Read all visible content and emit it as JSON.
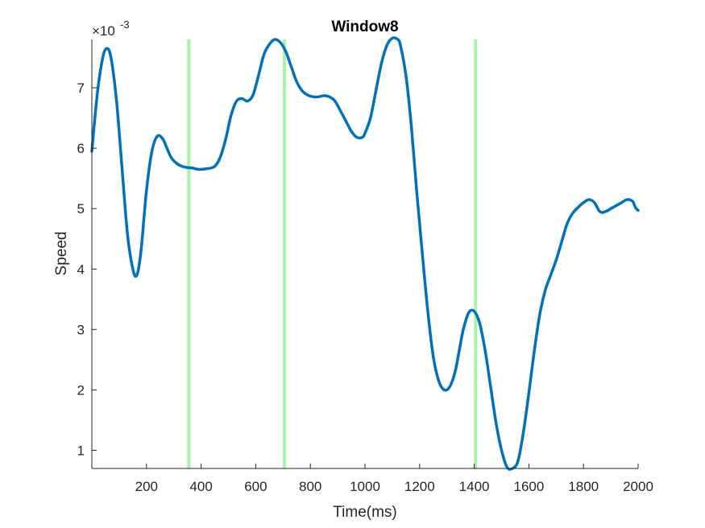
{
  "chart_data": {
    "type": "line",
    "title": "Window8",
    "xlabel": "Time(ms)",
    "ylabel": "Speed",
    "exponent_label": "×10",
    "exponent_power": "-3",
    "xlim": [
      0,
      2000
    ],
    "ylim": [
      0.7,
      7.8
    ],
    "xticks": [
      200,
      400,
      600,
      800,
      1000,
      1200,
      1400,
      1600,
      1800,
      2000
    ],
    "yticks": [
      1,
      2,
      3,
      4,
      5,
      6,
      7
    ],
    "grid": false,
    "series": [
      {
        "color": "#0072BD",
        "x": [
          0,
          20,
          40,
          55,
          70,
          90,
          110,
          130,
          150,
          165,
          180,
          200,
          220,
          240,
          260,
          275,
          290,
          310,
          330,
          350,
          370,
          390,
          420,
          450,
          470,
          490,
          510,
          530,
          550,
          570,
          590,
          610,
          630,
          650,
          670,
          690,
          710,
          730,
          750,
          770,
          790,
          810,
          830,
          850,
          870,
          890,
          910,
          930,
          950,
          970,
          990,
          1000,
          1020,
          1040,
          1060,
          1080,
          1100,
          1120,
          1130,
          1150,
          1170,
          1190,
          1210,
          1230,
          1250,
          1270,
          1290,
          1310,
          1330,
          1345,
          1360,
          1380,
          1400,
          1420,
          1440,
          1460,
          1480,
          1500,
          1520,
          1540,
          1560,
          1580,
          1600,
          1620,
          1640,
          1660,
          1680,
          1700,
          1720,
          1740,
          1760,
          1780,
          1800,
          1820,
          1840,
          1860,
          1880,
          1900,
          1920,
          1940,
          1960,
          1980,
          1990,
          2000
        ],
        "y": [
          5.95,
          6.9,
          7.5,
          7.65,
          7.5,
          6.8,
          5.7,
          4.6,
          4.0,
          3.9,
          4.3,
          5.3,
          5.95,
          6.2,
          6.15,
          6.0,
          5.85,
          5.75,
          5.7,
          5.68,
          5.67,
          5.65,
          5.66,
          5.7,
          5.85,
          6.15,
          6.55,
          6.78,
          6.82,
          6.78,
          6.88,
          7.2,
          7.55,
          7.72,
          7.8,
          7.75,
          7.6,
          7.35,
          7.1,
          6.95,
          6.88,
          6.85,
          6.85,
          6.87,
          6.85,
          6.78,
          6.62,
          6.45,
          6.28,
          6.18,
          6.18,
          6.25,
          6.5,
          6.95,
          7.4,
          7.7,
          7.82,
          7.8,
          7.7,
          7.2,
          6.35,
          5.25,
          4.25,
          3.3,
          2.55,
          2.15,
          2.0,
          2.05,
          2.3,
          2.65,
          3.0,
          3.28,
          3.3,
          3.1,
          2.65,
          2.05,
          1.45,
          1.0,
          0.72,
          0.7,
          0.82,
          1.3,
          1.95,
          2.65,
          3.25,
          3.65,
          3.9,
          4.15,
          4.45,
          4.75,
          4.92,
          5.02,
          5.1,
          5.15,
          5.1,
          4.95,
          4.95,
          5.0,
          5.05,
          5.1,
          5.15,
          5.12,
          5.02,
          4.97
        ]
      }
    ],
    "vlines": {
      "color": "#a6f5a6",
      "x": [
        355,
        705,
        1405
      ]
    }
  }
}
